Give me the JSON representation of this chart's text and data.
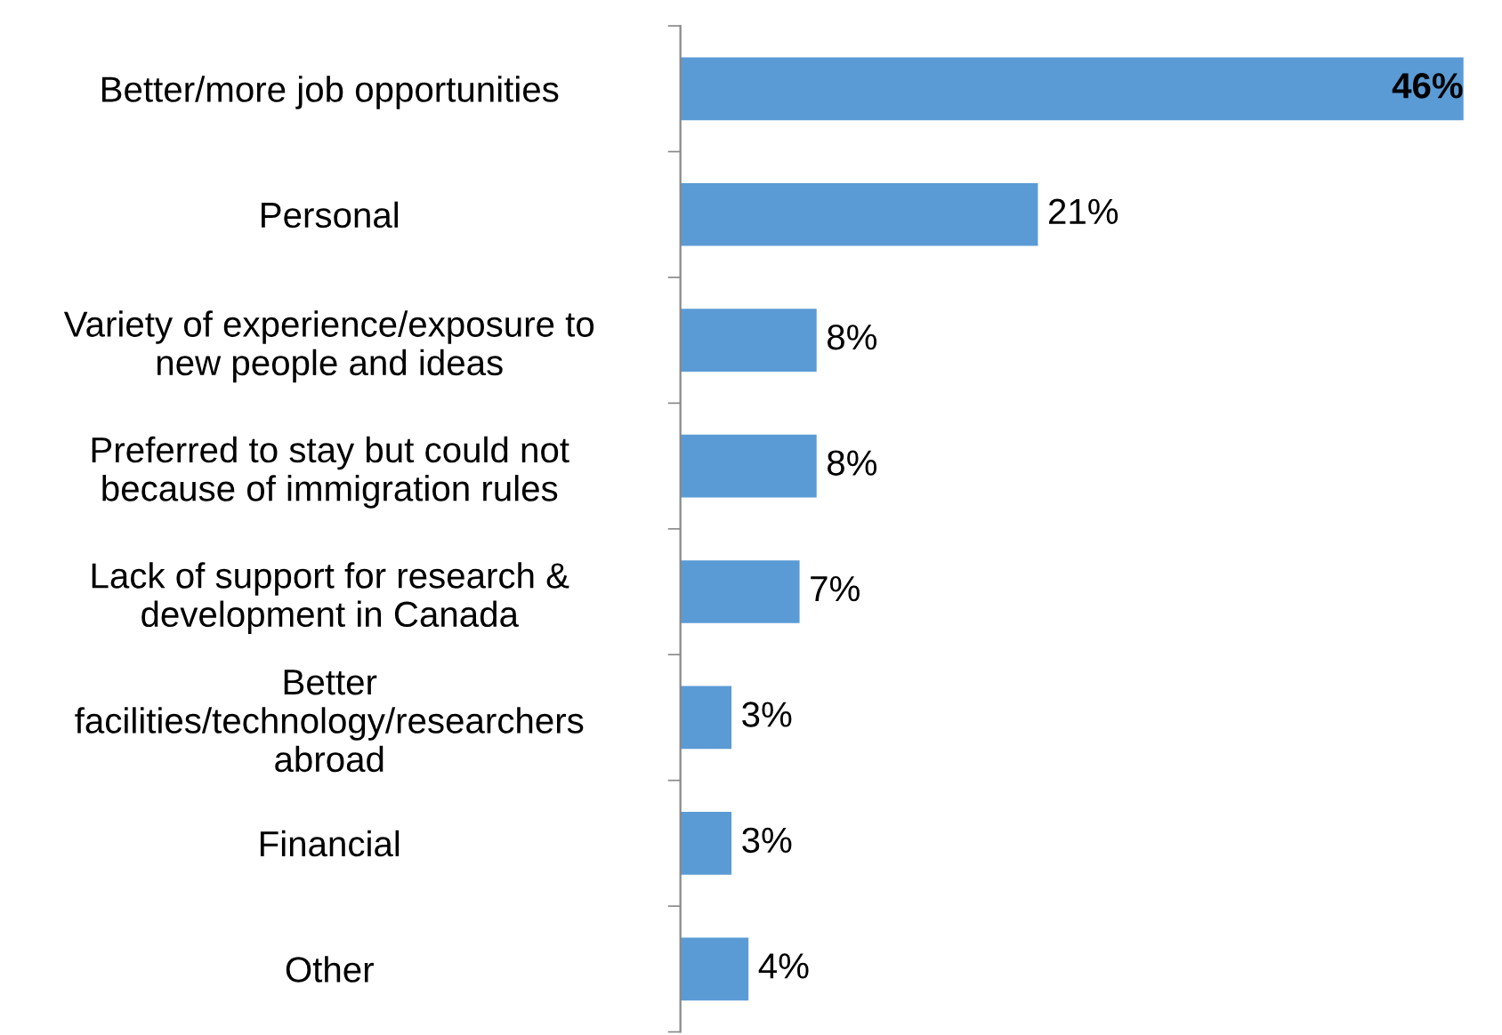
{
  "chart_data": {
    "type": "bar",
    "orientation": "horizontal",
    "categories": [
      "Better/more job opportunities",
      "Personal",
      "Variety of experience/exposure to\nnew people and ideas",
      "Preferred to stay but could not\nbecause of immigration rules",
      "Lack of support for research &\ndevelopment in Canada",
      "Better\nfacilities/technology/researchers\nabroad",
      "Financial",
      "Other"
    ],
    "values": [
      46,
      21,
      8,
      8,
      7,
      3,
      3,
      4
    ],
    "value_labels": [
      "46%",
      "21%",
      "8%",
      "8%",
      "7%",
      "3%",
      "3%",
      "4%"
    ],
    "color": "#5b9bd5",
    "grid": false,
    "legend": false
  }
}
